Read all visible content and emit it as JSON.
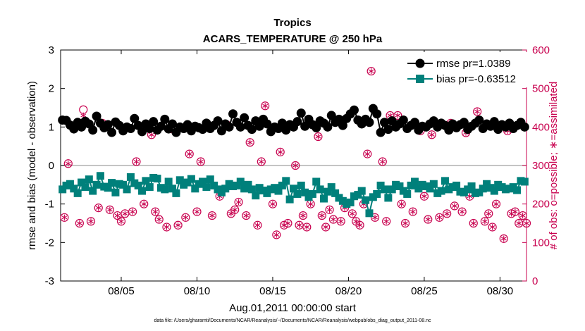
{
  "chart_data": {
    "type": "line",
    "title": "Tropics",
    "subtitle": "ACARS_TEMPERATURE @ 250 hPa",
    "xlabel": "Aug.01,2011 00:00:00 start",
    "ylabel_left": "rmse and bias (model - observation)",
    "ylabel_right": "# of obs: o=possible; ∗=assimilated",
    "footnote": "data file: /Users/gharamti/Documents/NCAR/Reanalysis/~/Documents/NCAR/Reanalysis/webpub/obs_diag_output_2011-08.nc",
    "xlim": [
      1,
      31.75
    ],
    "ylim_left": [
      -3,
      3
    ],
    "ylim_right": [
      0,
      600
    ],
    "x_ticks": [
      5,
      10,
      15,
      20,
      25,
      30
    ],
    "x_tick_labels": [
      "08/05",
      "08/10",
      "08/15",
      "08/20",
      "08/25",
      "08/30"
    ],
    "y_ticks_left": [
      -3,
      -2,
      -1,
      0,
      1,
      2,
      3
    ],
    "y_tick_labels_left": [
      "-3",
      "-2",
      "-1",
      "0",
      "1",
      "2",
      "3"
    ],
    "y_ticks_right": [
      0,
      100,
      200,
      300,
      400,
      500,
      600
    ],
    "y_tick_labels_right": [
      "0",
      "100",
      "200",
      "300",
      "400",
      "500",
      "600"
    ],
    "legend_position": "top-right",
    "grid": false,
    "zero_line": true,
    "series": [
      {
        "name": "rmse pr=1.0389",
        "color": "#000000",
        "marker": "circle",
        "x": [
          1.125,
          1.375,
          1.625,
          1.875,
          2.125,
          2.375,
          2.625,
          2.875,
          3.125,
          3.375,
          3.625,
          3.875,
          4.125,
          4.375,
          4.625,
          4.875,
          5.125,
          5.375,
          5.625,
          5.875,
          6.125,
          6.375,
          6.625,
          6.875,
          7.125,
          7.375,
          7.625,
          7.875,
          8.125,
          8.375,
          8.625,
          8.875,
          9.125,
          9.375,
          9.625,
          9.875,
          10.125,
          10.375,
          10.625,
          10.875,
          11.125,
          11.375,
          11.625,
          11.875,
          12.125,
          12.375,
          12.625,
          12.875,
          13.125,
          13.375,
          13.625,
          13.875,
          14.125,
          14.375,
          14.625,
          14.875,
          15.125,
          15.375,
          15.625,
          15.875,
          16.125,
          16.375,
          16.625,
          16.875,
          17.125,
          17.375,
          17.625,
          17.875,
          18.125,
          18.375,
          18.625,
          18.875,
          19.125,
          19.375,
          19.625,
          19.875,
          20.125,
          20.375,
          20.625,
          20.875,
          21.125,
          21.375,
          21.625,
          21.875,
          22.125,
          22.375,
          22.625,
          22.875,
          23.125,
          23.375,
          23.625,
          23.875,
          24.125,
          24.375,
          24.625,
          24.875,
          25.125,
          25.375,
          25.625,
          25.875,
          26.125,
          26.375,
          26.625,
          26.875,
          27.125,
          27.375,
          27.625,
          27.875,
          28.125,
          28.375,
          28.625,
          28.875,
          29.125,
          29.375,
          29.625,
          29.875,
          30.125,
          30.375,
          30.625,
          30.875,
          31.125,
          31.375,
          31.625
        ],
        "values": [
          1.18,
          1.17,
          1.05,
          0.95,
          1.12,
          1.0,
          1.15,
          1.08,
          0.92,
          1.28,
          1.1,
          0.98,
          1.06,
          0.86,
          1.13,
          1.04,
          0.9,
          1.0,
          0.96,
          1.22,
          1.04,
          0.88,
          1.08,
          0.96,
          1.14,
          0.92,
          1.02,
          1.2,
          0.95,
          1.08,
          0.86,
          1.0,
          0.96,
          1.06,
          0.9,
          1.02,
          0.98,
          0.94,
          1.1,
          0.96,
          1.04,
          1.16,
          0.9,
          1.08,
          1.0,
          1.34,
          1.12,
          1.0,
          1.24,
          1.04,
          0.94,
          1.16,
          1.02,
          1.2,
          1.08,
          0.88,
          1.0,
          0.96,
          1.1,
          0.92,
          1.06,
          1.0,
          1.14,
          1.36,
          1.02,
          1.2,
          1.06,
          0.98,
          1.16,
          1.1,
          1.0,
          1.3,
          1.12,
          1.2,
          1.04,
          1.22,
          1.34,
          1.44,
          1.18,
          1.08,
          1.2,
          1.12,
          1.48,
          1.34,
          0.86,
          1.12,
          0.94,
          1.16,
          1.0,
          1.08,
          1.18,
          0.96,
          1.04,
          1.12,
          0.92,
          1.02,
          1.0,
          1.08,
          1.16,
          1.0,
          1.1,
          1.04,
          0.92,
          1.08,
          0.98,
          1.06,
          1.12,
          0.94,
          1.02,
          1.1,
          1.18,
          0.96,
          1.08,
          1.02,
          1.14,
          0.94,
          1.06,
          1.0,
          1.1,
          0.96,
          1.04,
          1.12,
          1.0
        ]
      },
      {
        "name": "bias pr=-0.63512",
        "color": "#00807b",
        "marker": "square",
        "x": [
          1.125,
          1.375,
          1.625,
          1.875,
          2.125,
          2.375,
          2.625,
          2.875,
          3.125,
          3.375,
          3.625,
          3.875,
          4.125,
          4.375,
          4.625,
          4.875,
          5.125,
          5.375,
          5.625,
          5.875,
          6.125,
          6.375,
          6.625,
          6.875,
          7.125,
          7.375,
          7.625,
          7.875,
          8.125,
          8.375,
          8.625,
          8.875,
          9.125,
          9.375,
          9.625,
          9.875,
          10.125,
          10.375,
          10.625,
          10.875,
          11.125,
          11.375,
          11.625,
          11.875,
          12.125,
          12.375,
          12.625,
          12.875,
          13.125,
          13.375,
          13.625,
          13.875,
          14.125,
          14.375,
          14.625,
          14.875,
          15.125,
          15.375,
          15.625,
          15.875,
          16.125,
          16.375,
          16.625,
          16.875,
          17.125,
          17.375,
          17.625,
          17.875,
          18.125,
          18.375,
          18.625,
          18.875,
          19.125,
          19.375,
          19.625,
          19.875,
          20.125,
          20.375,
          20.625,
          20.875,
          21.125,
          21.375,
          21.625,
          21.875,
          22.125,
          22.375,
          22.625,
          22.875,
          23.125,
          23.375,
          23.625,
          23.875,
          24.125,
          24.375,
          24.625,
          24.875,
          25.125,
          25.375,
          25.625,
          25.875,
          26.125,
          26.375,
          26.625,
          26.875,
          27.125,
          27.375,
          27.625,
          27.875,
          28.125,
          28.375,
          28.625,
          28.875,
          29.125,
          29.375,
          29.625,
          29.875,
          30.125,
          30.375,
          30.625,
          30.875,
          31.125,
          31.375,
          31.625
        ],
        "values": [
          -0.62,
          -0.52,
          -0.48,
          -0.6,
          -0.72,
          -0.44,
          -0.56,
          -0.36,
          -0.66,
          -0.5,
          -0.27,
          -0.55,
          -0.58,
          -0.45,
          -0.7,
          -0.48,
          -0.5,
          -0.62,
          -0.3,
          -0.46,
          -0.52,
          -0.66,
          -0.4,
          -0.56,
          -0.32,
          -0.34,
          -0.58,
          -0.62,
          -0.42,
          -0.6,
          -0.72,
          -0.38,
          -0.5,
          -0.44,
          -0.35,
          -0.6,
          -0.48,
          -0.42,
          -0.56,
          -0.36,
          -0.52,
          -0.62,
          -0.7,
          -0.6,
          -0.48,
          -0.54,
          -0.52,
          -0.42,
          -0.6,
          -0.5,
          -0.62,
          -0.78,
          -0.58,
          -0.65,
          -0.72,
          -0.62,
          -0.58,
          -0.66,
          -0.52,
          -0.4,
          -0.88,
          -0.6,
          -0.74,
          -0.52,
          -0.7,
          -0.82,
          -0.74,
          -0.42,
          -0.62,
          -0.86,
          -0.68,
          -0.56,
          -0.72,
          -0.84,
          -0.92,
          -1.0,
          -0.96,
          -0.8,
          -0.76,
          -0.66,
          -0.9,
          -1.24,
          -0.82,
          -0.74,
          -0.52,
          -0.62,
          -0.84,
          -0.62,
          -0.5,
          -0.54,
          -0.66,
          -0.74,
          -0.52,
          -0.42,
          -0.6,
          -0.5,
          -0.54,
          -0.6,
          -0.48,
          -0.72,
          -0.66,
          -0.4,
          -0.62,
          -0.56,
          -0.52,
          -0.68,
          -0.7,
          -0.62,
          -0.54,
          -0.72,
          -0.7,
          -0.6,
          -0.48,
          -0.58,
          -0.66,
          -0.5,
          -0.56,
          -0.62,
          -0.6,
          -0.56,
          -0.64,
          -0.4,
          -0.42
        ]
      },
      {
        "name": "possible",
        "color": "#c8004e",
        "marker": "open-circle",
        "x": [
          1.25,
          1.5,
          2.25,
          2.5,
          3.0,
          3.5,
          3.75,
          4.25,
          4.75,
          5.0,
          5.25,
          5.75,
          6.0,
          6.5,
          7.0,
          7.25,
          7.5,
          8.0,
          8.25,
          8.75,
          9.25,
          9.5,
          10.0,
          10.25,
          11.0,
          11.5,
          12.0,
          12.25,
          12.5,
          12.75,
          13.25,
          13.5,
          14.0,
          14.25,
          14.5,
          15.0,
          15.25,
          15.5,
          15.75,
          16.0,
          16.5,
          16.75,
          17.0,
          17.25,
          17.5,
          18.0,
          18.25,
          18.5,
          18.75,
          19.0,
          19.5,
          19.75,
          20.25,
          20.5,
          20.75,
          21.0,
          21.25,
          21.5,
          21.75,
          22.25,
          22.5,
          22.75,
          23.25,
          23.5,
          23.75,
          24.25,
          24.75,
          25.0,
          25.25,
          25.5,
          26.0,
          26.5,
          26.75,
          27.0,
          27.5,
          27.75,
          28.0,
          28.25,
          28.5,
          29.0,
          29.25,
          29.5,
          29.75,
          30.25,
          30.5,
          30.75,
          31.0,
          31.25,
          31.5,
          31.75
        ],
        "values": [
          165,
          305,
          150,
          445,
          155,
          190,
          410,
          185,
          170,
          155,
          175,
          180,
          310,
          200,
          380,
          180,
          160,
          140,
          395,
          145,
          165,
          330,
          180,
          310,
          170,
          220,
          405,
          175,
          185,
          205,
          170,
          360,
          145,
          310,
          455,
          200,
          120,
          335,
          145,
          150,
          300,
          145,
          170,
          140,
          200,
          375,
          170,
          140,
          185,
          160,
          155,
          190,
          175,
          155,
          145,
          200,
          330,
          545,
          165,
          310,
          155,
          430,
          430,
          200,
          150,
          180,
          390,
          220,
          160,
          380,
          165,
          175,
          410,
          195,
          180,
          385,
          220,
          150,
          440,
          155,
          175,
          140,
          200,
          110,
          390,
          175,
          180,
          150,
          170,
          150
        ]
      },
      {
        "name": "assimilated",
        "color": "#c8004e",
        "marker": "asterisk",
        "x": [
          1.25,
          1.5,
          2.25,
          2.5,
          3.0,
          3.5,
          3.75,
          4.25,
          4.75,
          5.0,
          5.25,
          5.75,
          6.0,
          6.5,
          7.0,
          7.25,
          7.5,
          8.0,
          8.25,
          8.75,
          9.25,
          9.5,
          10.0,
          10.25,
          11.0,
          11.5,
          12.0,
          12.25,
          12.5,
          12.75,
          13.25,
          13.5,
          14.0,
          14.25,
          14.5,
          15.0,
          15.25,
          15.5,
          15.75,
          16.0,
          16.5,
          16.75,
          17.0,
          17.25,
          17.5,
          18.0,
          18.25,
          18.5,
          18.75,
          19.0,
          19.5,
          19.75,
          20.25,
          20.5,
          20.75,
          21.0,
          21.25,
          21.5,
          21.75,
          22.25,
          22.5,
          22.75,
          23.25,
          23.5,
          23.75,
          24.25,
          24.75,
          25.0,
          25.25,
          25.5,
          26.0,
          26.5,
          26.75,
          27.0,
          27.5,
          27.75,
          28.0,
          28.25,
          28.5,
          29.0,
          29.25,
          29.5,
          29.75,
          30.25,
          30.5,
          30.75,
          31.0,
          31.25,
          31.5,
          31.75
        ],
        "values": [
          165,
          305,
          150,
          430,
          155,
          190,
          410,
          185,
          170,
          155,
          175,
          180,
          310,
          200,
          380,
          180,
          160,
          140,
          395,
          145,
          165,
          330,
          180,
          310,
          170,
          220,
          405,
          175,
          185,
          205,
          170,
          360,
          145,
          310,
          455,
          200,
          120,
          335,
          145,
          150,
          300,
          145,
          170,
          140,
          200,
          375,
          170,
          140,
          185,
          160,
          155,
          190,
          175,
          155,
          145,
          200,
          330,
          545,
          165,
          310,
          155,
          430,
          430,
          200,
          150,
          180,
          390,
          220,
          160,
          380,
          165,
          175,
          410,
          195,
          180,
          385,
          220,
          150,
          440,
          155,
          175,
          140,
          200,
          110,
          390,
          175,
          180,
          150,
          170,
          150
        ]
      }
    ],
    "colors": {
      "axis": "#000000",
      "right_axis": "#c8004e",
      "zero_line": "#b0b0b0"
    }
  }
}
